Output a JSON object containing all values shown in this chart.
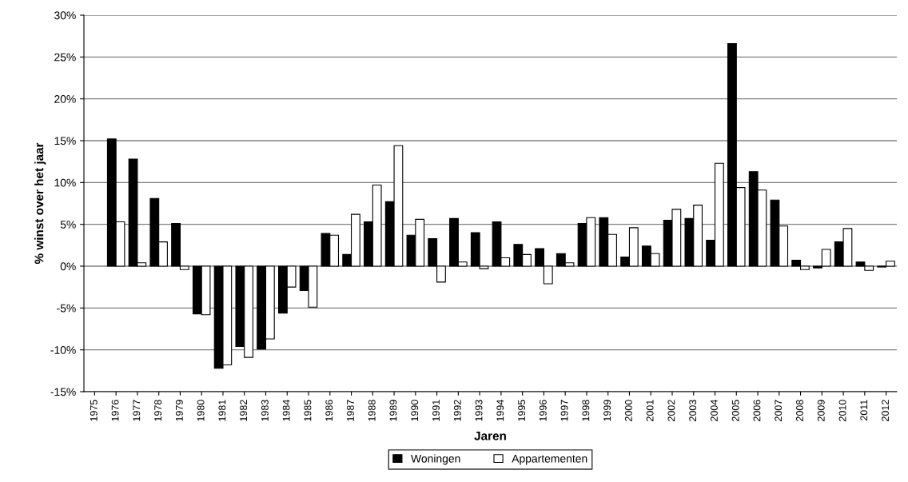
{
  "chart_data": {
    "type": "bar",
    "xlabel": "Jaren",
    "ylabel": "% winst over het jaar",
    "categories": [
      "1975",
      "1976",
      "1977",
      "1978",
      "1979",
      "1980",
      "1981",
      "1982",
      "1983",
      "1984",
      "1985",
      "1986",
      "1987",
      "1988",
      "1989",
      "1990",
      "1991",
      "1992",
      "1993",
      "1994",
      "1995",
      "1996",
      "1997",
      "1998",
      "1999",
      "2000",
      "2001",
      "2002",
      "2003",
      "2004",
      "2005",
      "2006",
      "2007",
      "2008",
      "2009",
      "2010",
      "2011",
      "2012"
    ],
    "series": [
      {
        "name": "Woningen",
        "color": "#000000",
        "values": [
          null,
          15.2,
          12.8,
          8.1,
          5.1,
          -5.7,
          -12.2,
          -9.6,
          -9.9,
          -5.6,
          -2.9,
          3.9,
          1.4,
          5.3,
          7.7,
          3.7,
          3.3,
          5.7,
          4.0,
          5.3,
          2.6,
          2.1,
          1.5,
          5.1,
          5.8,
          1.1,
          2.4,
          5.5,
          5.7,
          3.1,
          26.6,
          11.3,
          7.9,
          0.7,
          -0.2,
          2.9,
          0.5,
          -0.1
        ]
      },
      {
        "name": "Appartementen",
        "color": "#ffffff",
        "values": [
          null,
          5.3,
          0.4,
          2.9,
          -0.4,
          -5.8,
          -11.8,
          -10.9,
          -8.7,
          -2.5,
          -4.9,
          3.7,
          6.2,
          9.7,
          14.4,
          5.6,
          -1.9,
          0.5,
          -0.3,
          1.0,
          1.4,
          -2.1,
          0.4,
          5.8,
          3.8,
          4.6,
          1.5,
          6.8,
          7.3,
          12.3,
          9.4,
          9.1,
          4.8,
          -0.4,
          2.0,
          4.5,
          -0.5,
          0.6
        ]
      }
    ],
    "ylim": [
      -15,
      30
    ],
    "yticks": [
      {
        "value": -15,
        "label": "-15%"
      },
      {
        "value": -10,
        "label": "-10%"
      },
      {
        "value": -5,
        "label": "-5%"
      },
      {
        "value": 0,
        "label": "0%"
      },
      {
        "value": 5,
        "label": "5%"
      },
      {
        "value": 10,
        "label": "10%"
      },
      {
        "value": 15,
        "label": "15%"
      },
      {
        "value": 20,
        "label": "20%"
      },
      {
        "value": 25,
        "label": "25%"
      },
      {
        "value": 30,
        "label": "30%"
      }
    ],
    "grid": "y",
    "legend": "bottom"
  }
}
